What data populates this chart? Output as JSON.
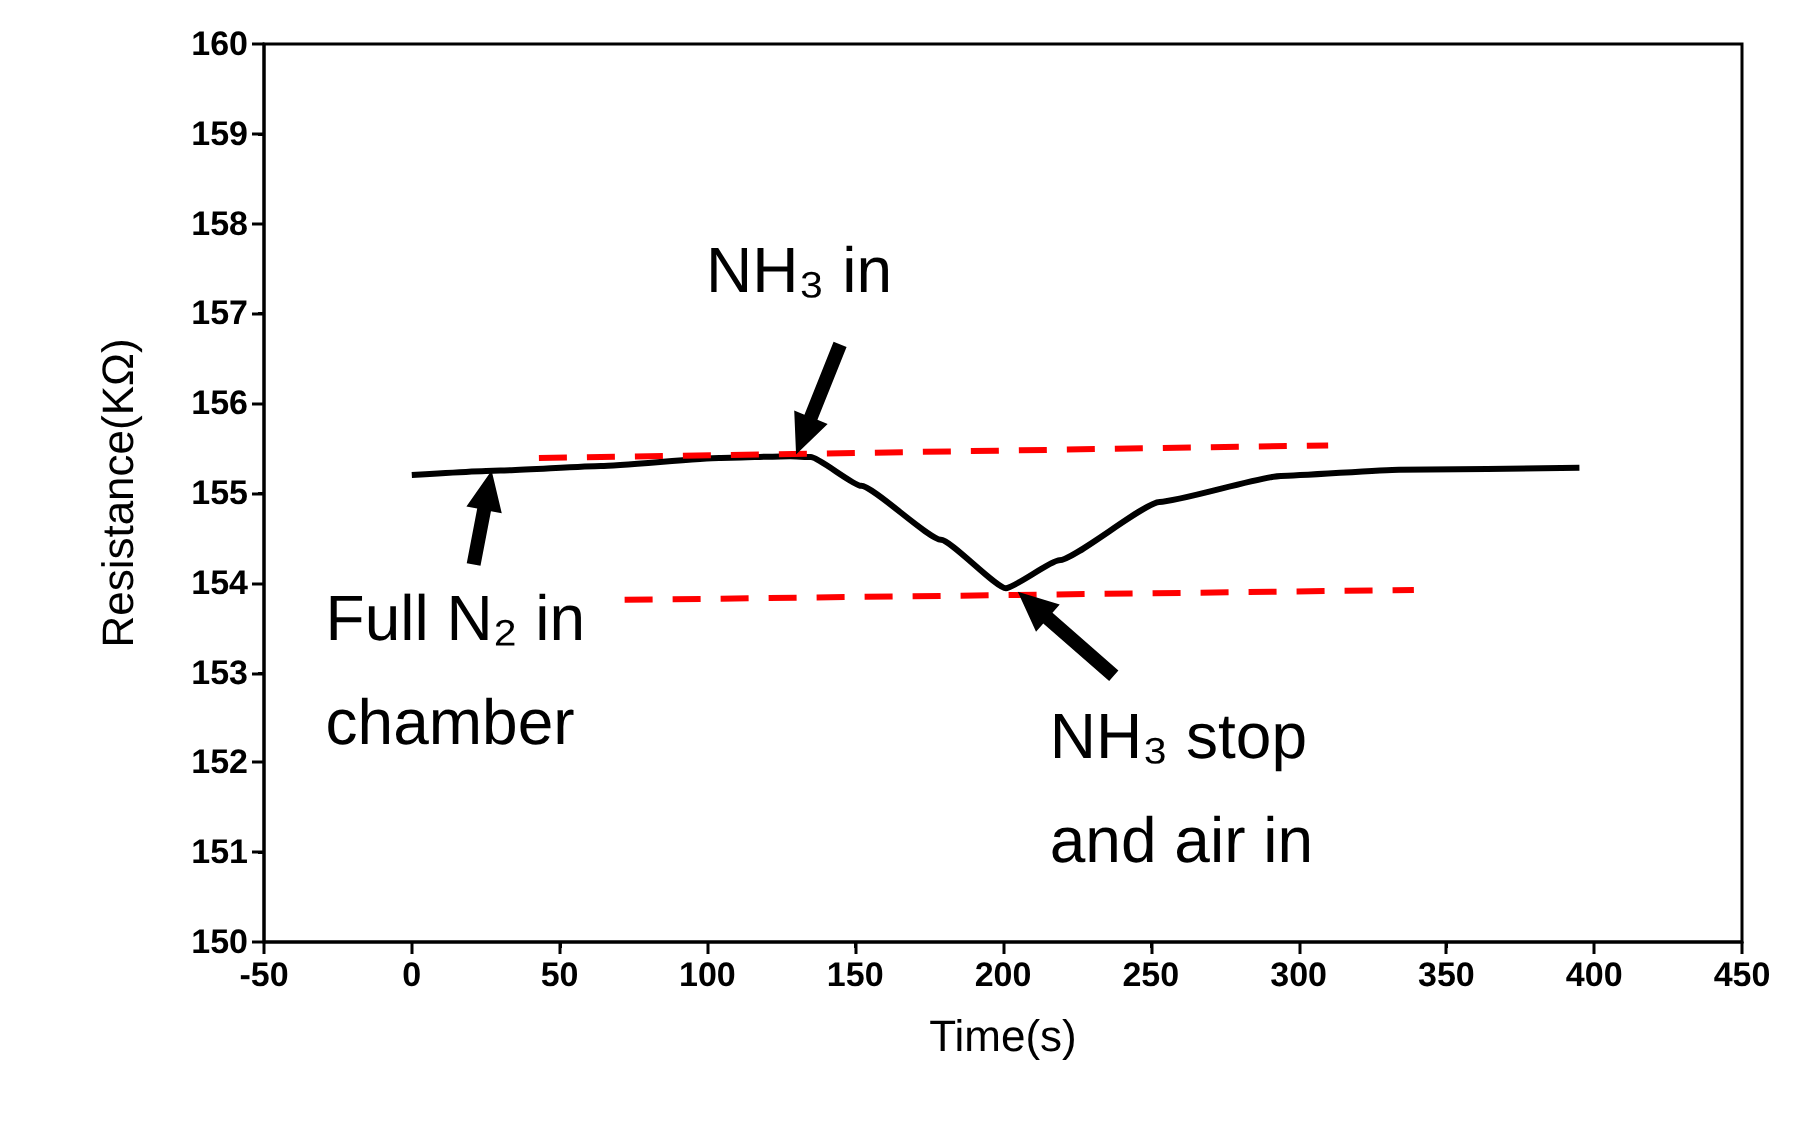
{
  "chart_data": {
    "type": "line",
    "xlabel": "Time(s)",
    "ylabel": "Resistance(KΩ)",
    "xlim": [
      -50,
      450
    ],
    "xticks": [
      -50,
      0,
      50,
      100,
      150,
      200,
      250,
      300,
      350,
      400,
      450
    ],
    "ylim": [
      150,
      160
    ],
    "yticks": [
      150,
      151,
      152,
      153,
      154,
      155,
      156,
      157,
      158,
      159,
      160
    ],
    "marker": "none",
    "series": [
      {
        "color": "#000000",
        "line_style": "solid",
        "x": [
          0,
          30,
          64,
          104,
          128,
          135,
          152,
          179,
          201,
          219,
          253,
          294,
          334,
          395
        ],
        "values": [
          155.2,
          155.25,
          155.3,
          155.39,
          155.41,
          155.4,
          155.08,
          154.48,
          153.94,
          154.25,
          154.9,
          155.19,
          155.26,
          155.28
        ]
      },
      {
        "color": "#ff0000",
        "line_style": "dashed",
        "x": [
          43,
          310
        ],
        "values": [
          155.39,
          155.53
        ]
      },
      {
        "color": "#ff0000",
        "line_style": "dashed",
        "x": [
          72,
          339
        ],
        "values": [
          153.81,
          153.92
        ]
      }
    ],
    "annotations": [
      {
        "text": "NH₃ in",
        "x": 130,
        "y": 155.43
      },
      {
        "text": "Full N₂ in\nchamber",
        "x": 27,
        "y": 155.25
      },
      {
        "text": "NH₃ stop\nand air in",
        "x": 205,
        "y": 153.9
      }
    ]
  }
}
